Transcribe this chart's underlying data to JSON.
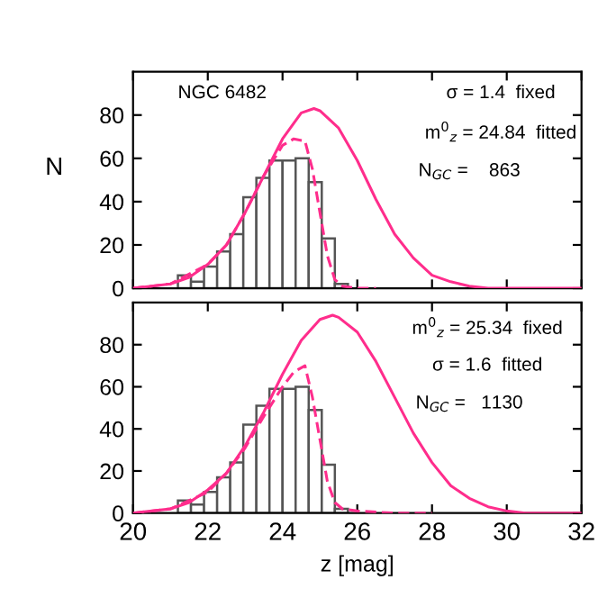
{
  "chart_data": [
    {
      "type": "histogram",
      "ylabel": "N",
      "xlim": [
        20,
        32
      ],
      "ylim": [
        0,
        100
      ],
      "xticks": [
        20,
        22,
        24,
        26,
        28,
        30,
        32
      ],
      "yticks": [
        0,
        20,
        40,
        60,
        80
      ],
      "tick_labels": "y",
      "grid": false,
      "color": "#ffffff",
      "bins": [
        21.2,
        21.55,
        21.9,
        22.25,
        22.6,
        22.95,
        23.3,
        23.65,
        24.0,
        24.35,
        24.7,
        25.05,
        25.4,
        25.75
      ],
      "values": [
        6,
        3,
        10,
        17,
        25,
        42,
        51,
        59,
        59,
        60,
        49,
        23,
        2
      ],
      "annotations": [
        "NGC 6482",
        "σ = 1.4  fixed",
        "m$^{0}$$_{z}$ = 24.84  fitted",
        "N$_{GC}$ =    863"
      ],
      "series": [
        {
          "type": "line",
          "color": "#ff2d8c",
          "line_style": "solid",
          "x": [
            20,
            20.5,
            21,
            21.5,
            22,
            22.5,
            23,
            23.5,
            24,
            24.5,
            24.84,
            25,
            25.5,
            26,
            26.5,
            27,
            27.5,
            28,
            28.5,
            29,
            29.5,
            30,
            31,
            32
          ],
          "values": [
            0,
            1,
            2,
            5,
            11,
            20,
            35,
            52,
            69,
            81,
            83,
            82,
            74,
            59,
            41,
            25,
            14,
            6,
            3,
            1,
            0,
            0,
            0,
            0
          ]
        },
        {
          "type": "line",
          "color": "#ff2d8c",
          "line_style": "dashed",
          "x": [
            20,
            21,
            22,
            22.5,
            23,
            23.5,
            24,
            24.3,
            24.6,
            24.8,
            25,
            25.2,
            25.4,
            25.6,
            26,
            26.5
          ],
          "values": [
            0,
            2,
            11,
            20,
            35,
            52,
            66,
            69,
            68,
            55,
            35,
            15,
            4,
            1,
            0,
            0
          ]
        }
      ]
    },
    {
      "type": "histogram",
      "xlabel": "z [mag]",
      "xlim": [
        20,
        32
      ],
      "ylim": [
        0,
        100
      ],
      "xticks": [
        20,
        22,
        24,
        26,
        28,
        30,
        32
      ],
      "yticks": [
        0,
        20,
        40,
        60,
        80
      ],
      "grid": false,
      "color": "#ffffff",
      "bins": [
        21.2,
        21.55,
        21.9,
        22.25,
        22.6,
        22.95,
        23.3,
        23.65,
        24.0,
        24.35,
        24.7,
        25.05,
        25.4,
        25.75
      ],
      "values": [
        6,
        4,
        10,
        17,
        24,
        42,
        51,
        59,
        59,
        60,
        49,
        23,
        2
      ],
      "annotations": [
        "m$^{0}$$_{z}$ = 25.34  fixed",
        "σ = 1.6  fitted",
        "N$_{GC}$ =   1130"
      ],
      "series": [
        {
          "type": "line",
          "color": "#ff2d8c",
          "line_style": "solid",
          "x": [
            20,
            20.5,
            21,
            21.5,
            22,
            22.5,
            23,
            23.5,
            24,
            24.5,
            25,
            25.34,
            25.5,
            26,
            26.5,
            27,
            27.5,
            28,
            28.5,
            29,
            29.5,
            30,
            30.5,
            31,
            32
          ],
          "values": [
            0,
            1,
            2,
            5,
            11,
            19,
            32,
            48,
            66,
            82,
            92,
            94,
            93,
            86,
            72,
            55,
            38,
            24,
            13,
            7,
            3,
            1,
            0,
            0,
            0
          ]
        },
        {
          "type": "line",
          "color": "#ff2d8c",
          "line_style": "dashed",
          "x": [
            20,
            21,
            22,
            22.5,
            23,
            23.5,
            24,
            24.3,
            24.6,
            24.8,
            25,
            25.2,
            25.4,
            25.6,
            26,
            27,
            28
          ],
          "values": [
            0,
            2,
            10,
            19,
            31,
            46,
            60,
            67,
            70,
            55,
            35,
            15,
            5,
            2,
            1,
            0,
            0
          ]
        }
      ]
    }
  ]
}
